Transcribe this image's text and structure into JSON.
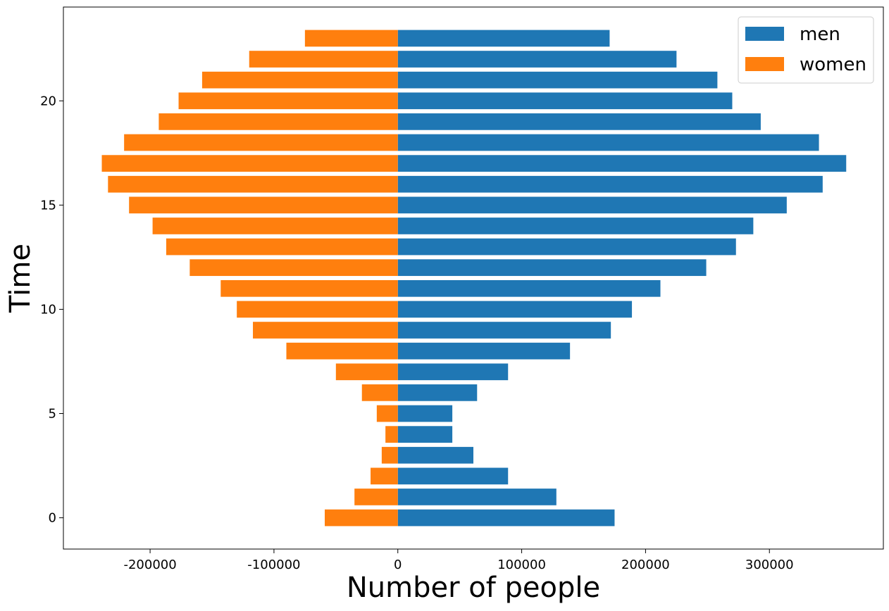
{
  "chart_data": {
    "type": "bar",
    "orientation": "horizontal",
    "title": "",
    "xlabel": "Number of people",
    "ylabel": "Time",
    "xlim": [
      -270000,
      392000
    ],
    "ylim": [
      -1.5,
      24.5
    ],
    "xticks": [
      -200000,
      -100000,
      0,
      100000,
      200000,
      300000
    ],
    "xtick_labels": [
      "-200000",
      "-100000",
      "0",
      "100000",
      "200000",
      "300000"
    ],
    "yticks": [
      0,
      5,
      10,
      15,
      20
    ],
    "ytick_labels": [
      "0",
      "5",
      "10",
      "15",
      "20"
    ],
    "grid": false,
    "legend_position": "top-right",
    "y": [
      0,
      1,
      2,
      3,
      4,
      5,
      6,
      7,
      8,
      9,
      10,
      11,
      12,
      13,
      14,
      15,
      16,
      17,
      18,
      19,
      20,
      21,
      22,
      23
    ],
    "series": [
      {
        "name": "men",
        "color": "#1f77b4",
        "values": [
          175000,
          128000,
          89000,
          61000,
          44000,
          44000,
          64000,
          89000,
          139000,
          172000,
          189000,
          212000,
          249000,
          273000,
          287000,
          314000,
          343000,
          362000,
          340000,
          293000,
          270000,
          258000,
          225000,
          171000
        ]
      },
      {
        "name": "women",
        "color": "#ff7f0e",
        "values": [
          -59000,
          -35000,
          -22000,
          -13000,
          -10000,
          -17000,
          -29000,
          -50000,
          -90000,
          -117000,
          -130000,
          -143000,
          -168000,
          -187000,
          -198000,
          -217000,
          -234000,
          -239000,
          -221000,
          -193000,
          -177000,
          -158000,
          -120000,
          -75000
        ]
      }
    ]
  }
}
